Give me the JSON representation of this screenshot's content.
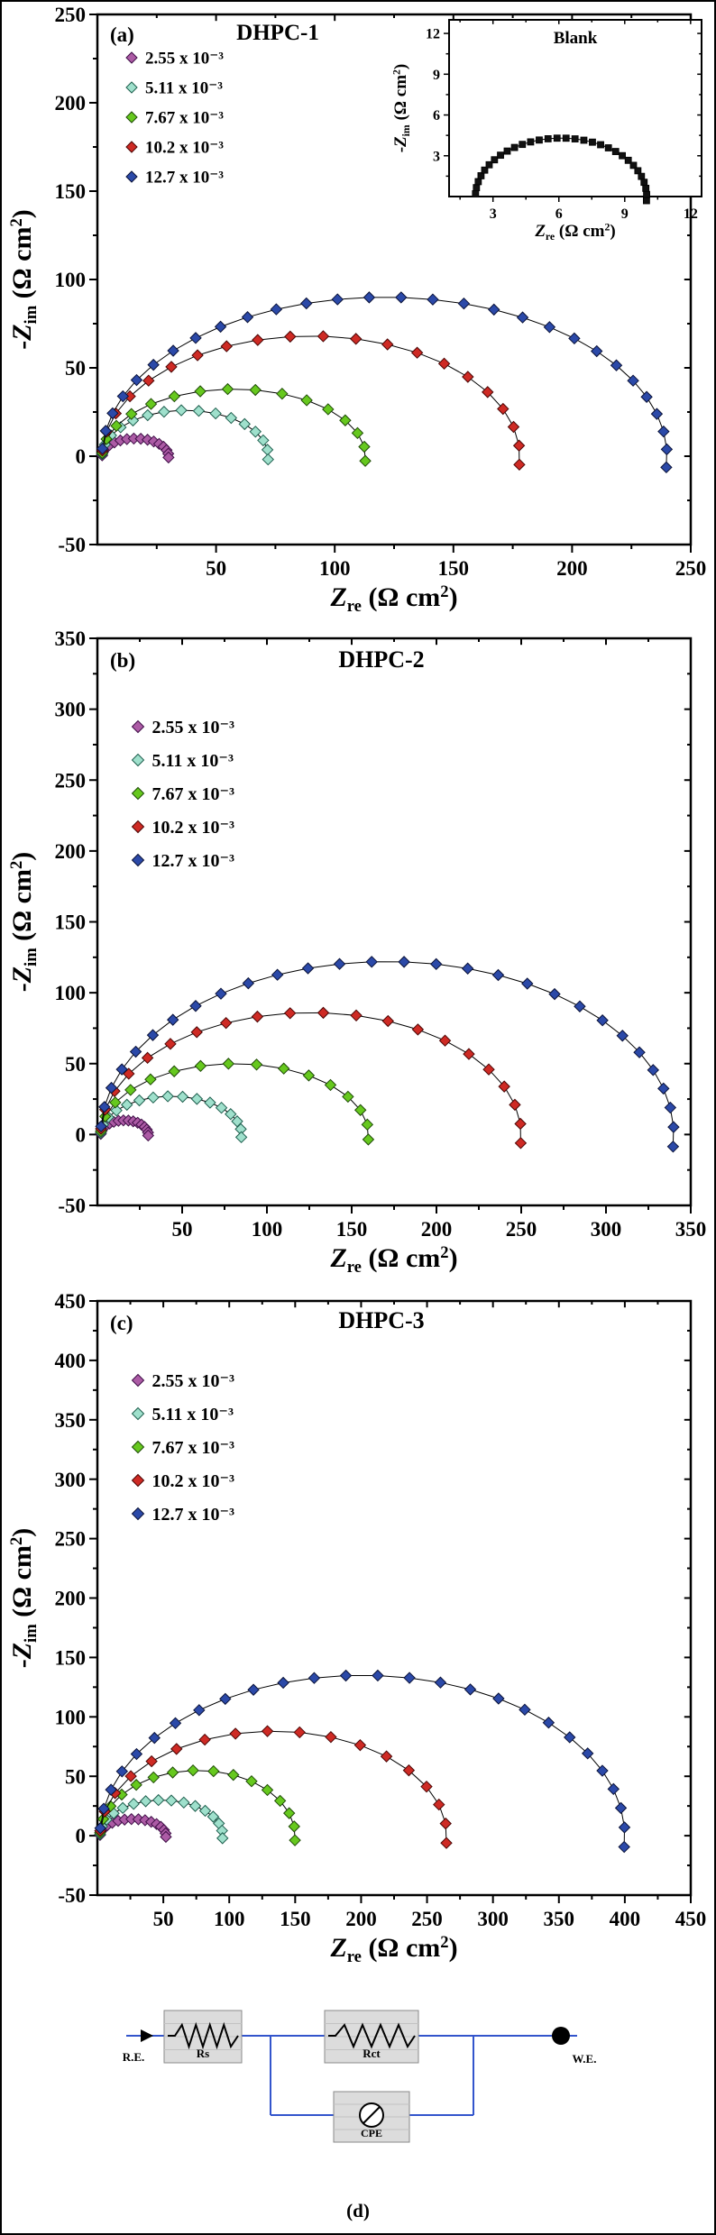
{
  "chart_data": [
    {
      "type": "scatter",
      "panel": "a",
      "corner_label": "(a)",
      "title": "DHPC-1",
      "xlabel": "Zre (Ω cm²)",
      "ylabel": "-Zim (Ω cm²)",
      "xlabel_sub": "re",
      "ylabel_sub": "im",
      "ylabel_prefix": "-",
      "xlim": [
        0,
        250
      ],
      "ylim": [
        -50,
        250
      ],
      "xticks": [
        50,
        100,
        150,
        200,
        250
      ],
      "yticks": [
        -50,
        0,
        50,
        100,
        150,
        200,
        250
      ],
      "grid": false,
      "legend_position": "upper-left",
      "series": [
        {
          "name": "2.55 x 10⁻³",
          "color": "#AC5BA5",
          "edge": "#3F0E47",
          "zre_start": 2,
          "zre_end": 30,
          "peak_zim": 10
        },
        {
          "name": "5.11 x 10⁻³",
          "color": "#9FE0CC",
          "edge": "#1E5F4E",
          "zre_start": 2,
          "zre_end": 72,
          "peak_zim": 26
        },
        {
          "name": "7.67 x 10⁻³",
          "color": "#66C81E",
          "edge": "#1E4A06",
          "zre_start": 2,
          "zre_end": 113,
          "peak_zim": 38
        },
        {
          "name": "10.2 x 10⁻³",
          "color": "#CE2A24",
          "edge": "#4A0504",
          "zre_start": 2,
          "zre_end": 178,
          "peak_zim": 68
        },
        {
          "name": "12.7 x 10⁻³",
          "color": "#2B49A8",
          "edge": "#0A1238",
          "zre_start": 2,
          "zre_end": 240,
          "peak_zim": 90
        }
      ],
      "inset": {
        "type": "scatter",
        "title": "Blank",
        "xlabel": "Zre (Ω cm²)",
        "ylabel": "-Zim (Ω cm²)",
        "xlabel_sub": "re",
        "ylabel_sub": "im",
        "ylabel_prefix": "-",
        "xlim": [
          1,
          12.5
        ],
        "ylim": [
          0,
          13
        ],
        "xticks": [
          3,
          6,
          9,
          12
        ],
        "yticks": [
          3,
          6,
          9,
          12
        ],
        "series": [
          {
            "name": "Blank",
            "marker": "square",
            "color": "#111111",
            "edge": "#000000",
            "zre_start": 2.2,
            "zre_end": 10,
            "peak_zim": 4.3
          }
        ]
      }
    },
    {
      "type": "scatter",
      "panel": "b",
      "corner_label": "(b)",
      "title": "DHPC-2",
      "xlabel": "Zre (Ω cm²)",
      "ylabel": "-Zim (Ω cm²)",
      "xlabel_sub": "re",
      "ylabel_sub": "im",
      "ylabel_prefix": "-",
      "xlim": [
        0,
        350
      ],
      "ylim": [
        -50,
        350
      ],
      "xticks": [
        50,
        100,
        150,
        200,
        250,
        300,
        350
      ],
      "yticks": [
        -50,
        0,
        50,
        100,
        150,
        200,
        250,
        300,
        350
      ],
      "grid": false,
      "legend_position": "upper-left",
      "series": [
        {
          "name": "2.55 x 10⁻³",
          "color": "#AC5BA5",
          "edge": "#3F0E47",
          "zre_start": 2,
          "zre_end": 30,
          "peak_zim": 10
        },
        {
          "name": "5.11 x 10⁻³",
          "color": "#9FE0CC",
          "edge": "#1E5F4E",
          "zre_start": 2,
          "zre_end": 85,
          "peak_zim": 27
        },
        {
          "name": "7.67 x 10⁻³",
          "color": "#66C81E",
          "edge": "#1E4A06",
          "zre_start": 2,
          "zre_end": 160,
          "peak_zim": 50
        },
        {
          "name": "10.2 x 10⁻³",
          "color": "#CE2A24",
          "edge": "#4A0504",
          "zre_start": 2,
          "zre_end": 250,
          "peak_zim": 86
        },
        {
          "name": "12.7 x 10⁻³",
          "color": "#2B49A8",
          "edge": "#0A1238",
          "zre_start": 2,
          "zre_end": 340,
          "peak_zim": 122
        }
      ]
    },
    {
      "type": "scatter",
      "panel": "c",
      "corner_label": "(c)",
      "title": "DHPC-3",
      "xlabel": "Zre (Ω cm²)",
      "ylabel": "-Zim (Ω cm²)",
      "xlabel_sub": "re",
      "ylabel_sub": "im",
      "ylabel_prefix": "-",
      "xlim": [
        0,
        450
      ],
      "ylim": [
        -50,
        450
      ],
      "xticks": [
        50,
        100,
        150,
        200,
        250,
        300,
        350,
        400,
        450
      ],
      "yticks": [
        -50,
        0,
        50,
        100,
        150,
        200,
        250,
        300,
        350,
        400,
        450
      ],
      "grid": false,
      "legend_position": "upper-left",
      "series": [
        {
          "name": "2.55 x 10⁻³",
          "color": "#AC5BA5",
          "edge": "#3F0E47",
          "zre_start": 2,
          "zre_end": 52,
          "peak_zim": 14
        },
        {
          "name": "5.11 x 10⁻³",
          "color": "#9FE0CC",
          "edge": "#1E5F4E",
          "zre_start": 2,
          "zre_end": 95,
          "peak_zim": 30
        },
        {
          "name": "7.67 x 10⁻³",
          "color": "#66C81E",
          "edge": "#1E4A06",
          "zre_start": 2,
          "zre_end": 150,
          "peak_zim": 55
        },
        {
          "name": "10.2 x 10⁻³",
          "color": "#CE2A24",
          "edge": "#4A0504",
          "zre_start": 2,
          "zre_end": 265,
          "peak_zim": 88
        },
        {
          "name": "12.7 x 10⁻³",
          "color": "#2B49A8",
          "edge": "#0A1238",
          "zre_start": 2,
          "zre_end": 400,
          "peak_zim": 135
        }
      ]
    }
  ],
  "circuit": {
    "caption": "(d)",
    "re_label": "R.E.",
    "we_label": "W.E.",
    "rs_label": "Rs",
    "rct_label": "Rct",
    "cpe_label": "CPE",
    "wire_color": "#3355CC"
  }
}
